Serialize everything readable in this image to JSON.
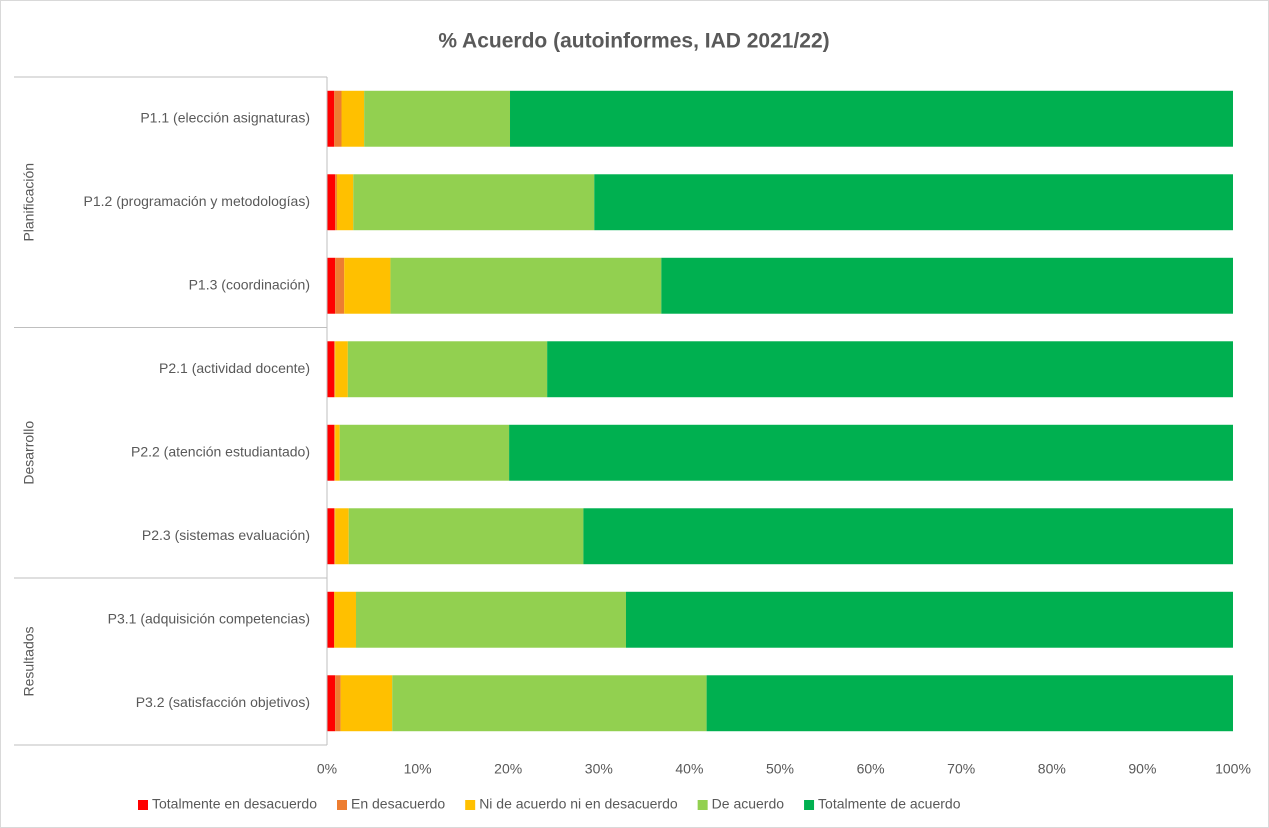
{
  "chart_data": {
    "type": "stacked-bar-horizontal",
    "title": "% Acuerdo (autoinformes, IAD 2021/22)",
    "groups": [
      {
        "label": "Planificación",
        "categories": [
          "P1.1 (elección asignaturas)",
          "P1.2 (programación y metodologías)",
          "P1.3 (coordinación)"
        ]
      },
      {
        "label": "Desarrollo",
        "categories": [
          "P2.1 (actividad docente)",
          "P2.2 (atención estudiantado)",
          "P2.3 (sistemas evaluación)"
        ]
      },
      {
        "label": "Resultados",
        "categories": [
          "P3.1 (adquisición competencias)",
          "P3.2 (satisfacción objetivos)"
        ]
      }
    ],
    "series": [
      {
        "name": "Totalmente en desacuerdo",
        "color": "#ff0000",
        "values": [
          0.8,
          0.9,
          0.9,
          0.8,
          0.8,
          0.8,
          0.8,
          0.9
        ]
      },
      {
        "name": "En desacuerdo",
        "color": "#ed7d31",
        "values": [
          0.8,
          0.2,
          1.0,
          0.1,
          0.1,
          0.1,
          0,
          0.6
        ]
      },
      {
        "name": "Ni de acuerdo ni en desacuerdo",
        "color": "#ffc000",
        "values": [
          2.5,
          1.8,
          5.1,
          1.4,
          0.5,
          1.5,
          2.4,
          5.7
        ]
      },
      {
        "name": "De acuerdo",
        "color": "#92d050",
        "values": [
          16.1,
          26.6,
          29.9,
          22.0,
          18.7,
          25.9,
          29.8,
          34.7
        ]
      },
      {
        "name": "Totalmente de acuerdo",
        "color": "#00b050",
        "values": [
          79.8,
          70.5,
          63.1,
          75.7,
          79.9,
          71.7,
          67.0,
          58.1
        ]
      }
    ],
    "xlim": [
      0,
      100
    ],
    "xticks": [
      {
        "value": 0,
        "label": "0%"
      },
      {
        "value": 10,
        "label": "10%"
      },
      {
        "value": 20,
        "label": "20%"
      },
      {
        "value": 30,
        "label": "30%"
      },
      {
        "value": 40,
        "label": "40%"
      },
      {
        "value": 50,
        "label": "50%"
      },
      {
        "value": 60,
        "label": "60%"
      },
      {
        "value": 70,
        "label": "70%"
      },
      {
        "value": 80,
        "label": "80%"
      },
      {
        "value": 90,
        "label": "90%"
      },
      {
        "value": 100,
        "label": "100%"
      }
    ],
    "grid": false,
    "legend": "bottom"
  }
}
